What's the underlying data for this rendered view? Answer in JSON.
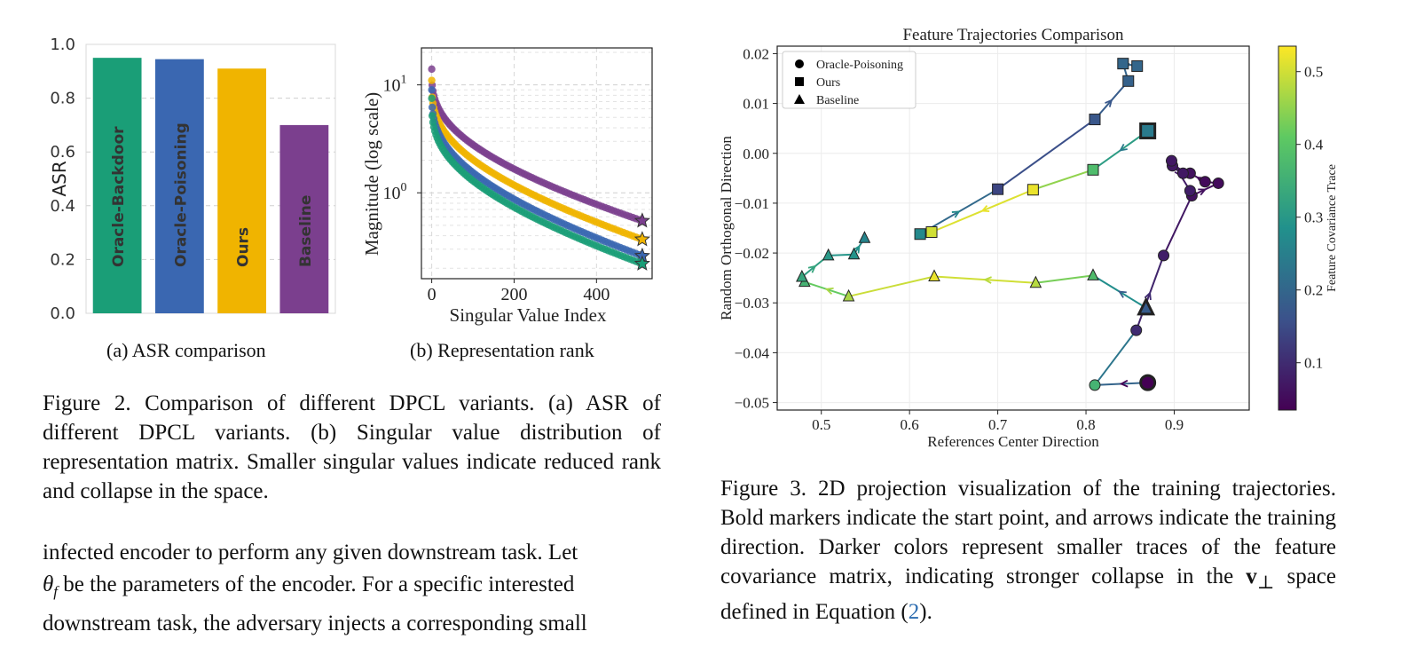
{
  "fig_a": {
    "caption": "(a) ASR comparison",
    "chart_data": {
      "type": "bar",
      "categories": [
        "Oracle-Backdoor",
        "Oracle-Poisoning",
        "Ours",
        "Baseline"
      ],
      "values": [
        0.95,
        0.945,
        0.91,
        0.7
      ],
      "colors": [
        "#1a9e77",
        "#3a67b1",
        "#f0b400",
        "#7b3f8e"
      ],
      "ylabel": "ASR",
      "ylim": [
        0,
        1.0
      ],
      "yticks": [
        "0.0",
        "0.2",
        "0.4",
        "0.6",
        "0.8",
        "1.0"
      ],
      "grid": "horizontal dashed"
    }
  },
  "fig_b": {
    "caption": "(b) Representation rank",
    "chart_data": {
      "type": "scatter",
      "xlabel": "Singular Value Index",
      "ylabel": "Magnitude (log scale)",
      "yscale": "log",
      "xlim": [
        -25,
        535
      ],
      "ylim": [
        0.16,
        22
      ],
      "xticks": [
        "0",
        "200",
        "400"
      ],
      "ytick_base": "10",
      "ytick_exps": [
        "1",
        "0"
      ],
      "series": [
        {
          "color": "#7b3f8e",
          "start": 14,
          "end": 0.55
        },
        {
          "color": "#f0b400",
          "start": 11,
          "end": 0.37
        },
        {
          "color": "#3a67b1",
          "start": 9,
          "end": 0.26
        },
        {
          "color": "#1a9e77",
          "start": 7.5,
          "end": 0.22
        }
      ],
      "end_marker": "star"
    }
  },
  "fig2_caption": "Figure 2. Comparison of different DPCL variants. (a) ASR of different DPCL variants. (b) Singular value distribution of representation matrix. Smaller singular values indicate reduced rank and collapse in the space.",
  "body_text": {
    "line1": "infected encoder to perform any given downstream task. Let",
    "line2_sym": "θ",
    "line2_sub": "f",
    "line2_rest": " be the parameters of the encoder. For a specific interested",
    "line3": "downstream task, the adversary injects a corresponding small"
  },
  "fig3": {
    "title": "Feature Trajectories Comparison",
    "chart_data": {
      "type": "line",
      "xlabel": "References Center Direction",
      "ylabel": "Random Orthogonal Direction",
      "xlim": [
        0.45,
        0.985
      ],
      "ylim": [
        -0.0515,
        0.0215
      ],
      "xticks": [
        "0.5",
        "0.6",
        "0.7",
        "0.8",
        "0.9"
      ],
      "yticks": [
        "0.02",
        "0.01",
        "0.00",
        "−0.01",
        "−0.02",
        "−0.03",
        "−0.04",
        "−0.05"
      ],
      "legend": [
        "Oracle-Poisoning",
        "Ours",
        "Baseline"
      ],
      "legend_position": "top-left",
      "colorbar_label": "Feature Covariance Trace",
      "colorbar_ticks": [
        "0.5",
        "0.4",
        "0.3",
        "0.2",
        "0.1"
      ],
      "colorbar_range": [
        0.035,
        0.535
      ],
      "series": [
        {
          "name": "Oracle-Poisoning",
          "marker": "circle",
          "points": [
            [
              0.87,
              -0.046,
              0.03
            ],
            [
              0.81,
              -0.0465,
              0.36
            ],
            [
              0.857,
              -0.0355,
              0.1
            ],
            [
              0.888,
              -0.0205,
              0.08
            ],
            [
              0.92,
              -0.0085,
              0.06
            ],
            [
              0.95,
              -0.006,
              0.05
            ],
            [
              0.935,
              -0.0057,
              0.05
            ],
            [
              0.918,
              -0.004,
              0.06
            ],
            [
              0.898,
              -0.0025,
              0.07
            ],
            [
              0.91,
              -0.004,
              0.07
            ],
            [
              0.897,
              -0.0015,
              0.07
            ],
            [
              0.918,
              -0.0075,
              0.08
            ]
          ]
        },
        {
          "name": "Ours",
          "marker": "square",
          "points": [
            [
              0.87,
              0.0045,
              0.24
            ],
            [
              0.808,
              -0.0033,
              0.38
            ],
            [
              0.74,
              -0.0073,
              0.52
            ],
            [
              0.625,
              -0.0158,
              0.5
            ],
            [
              0.612,
              -0.0162,
              0.27
            ],
            [
              0.7,
              -0.0072,
              0.14
            ],
            [
              0.81,
              0.0068,
              0.17
            ],
            [
              0.848,
              0.0145,
              0.19
            ],
            [
              0.842,
              0.018,
              0.2
            ],
            [
              0.858,
              0.0175,
              0.2
            ]
          ]
        },
        {
          "name": "Baseline",
          "marker": "triangle",
          "points": [
            [
              0.868,
              -0.031,
              0.18
            ],
            [
              0.808,
              -0.0245,
              0.38
            ],
            [
              0.743,
              -0.026,
              0.48
            ],
            [
              0.628,
              -0.0247,
              0.52
            ],
            [
              0.531,
              -0.0287,
              0.47
            ],
            [
              0.481,
              -0.0258,
              0.36
            ],
            [
              0.478,
              -0.0248,
              0.33
            ],
            [
              0.508,
              -0.0205,
              0.3
            ],
            [
              0.537,
              -0.0203,
              0.29
            ],
            [
              0.549,
              -0.017,
              0.26
            ]
          ]
        }
      ]
    }
  },
  "fig3_caption": {
    "text": "Figure 3. 2D projection visualization of the training trajectories. Bold markers indicate the start point, and arrows indicate the training direction. Darker colors represent smaller traces of the feature covariance matrix, indicating stronger collapse in the ",
    "vec": "v",
    "perp": "⊥",
    "text2": " space defined in Equation (",
    "ref": "2",
    "text3": ")."
  }
}
